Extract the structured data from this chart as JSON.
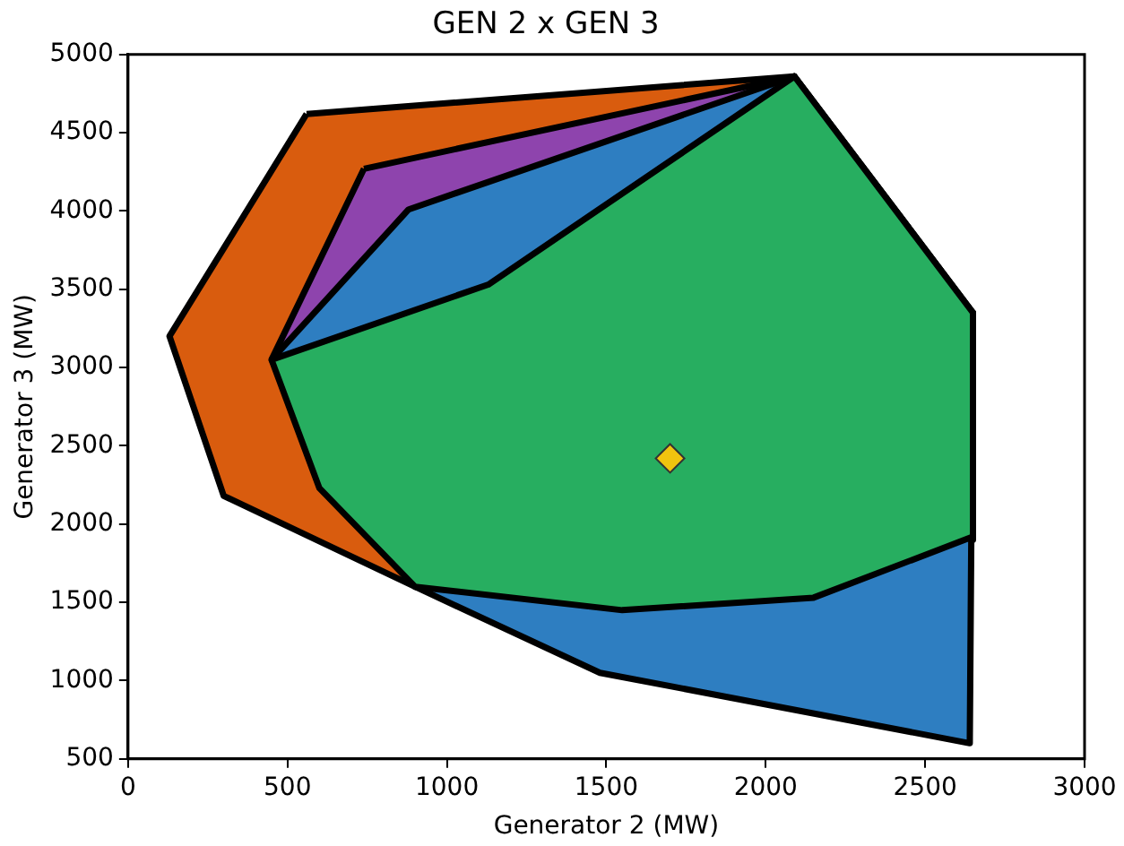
{
  "chart_data": {
    "type": "area",
    "title": "GEN 2 x GEN 3",
    "xlabel": "Generator 2 (MW)",
    "ylabel": "Generator 3 (MW)",
    "xlim": [
      0,
      3000
    ],
    "xticks": [
      0,
      500,
      1000,
      1500,
      2000,
      2500,
      3000
    ],
    "ylim": [
      500,
      5000
    ],
    "yticks": [
      500,
      1000,
      1500,
      2000,
      2500,
      3000,
      3500,
      4000,
      4500,
      5000
    ],
    "grid": false,
    "legend": false,
    "series": [
      {
        "type": "area",
        "color": "#d95c0e",
        "x": [
          560,
          2090,
          2650,
          2650,
          900,
          300,
          130
        ],
        "values": [
          4620,
          4860,
          3350,
          1900,
          1600,
          2180,
          3200
        ]
      },
      {
        "type": "area",
        "color": "#8e44ad",
        "x": [
          740,
          2090,
          450
        ],
        "values": [
          4270,
          4860,
          3050
        ]
      },
      {
        "type": "area",
        "color": "#2e7ec1",
        "x": [
          450,
          880,
          2090,
          2650,
          2640,
          1480,
          900
        ],
        "values": [
          3050,
          4010,
          4860,
          3350,
          600,
          1050,
          1600
        ]
      },
      {
        "type": "area",
        "color": "#27ae60",
        "x": [
          450,
          1130,
          2090,
          2650,
          2650,
          2150,
          1550,
          900,
          600
        ],
        "values": [
          3050,
          3530,
          4860,
          3350,
          1920,
          1530,
          1450,
          1600,
          2230
        ]
      },
      {
        "type": "scatter",
        "color": "#f1c40f",
        "marker": "diamond",
        "x": [
          1700
        ],
        "values": [
          2420
        ]
      }
    ]
  }
}
